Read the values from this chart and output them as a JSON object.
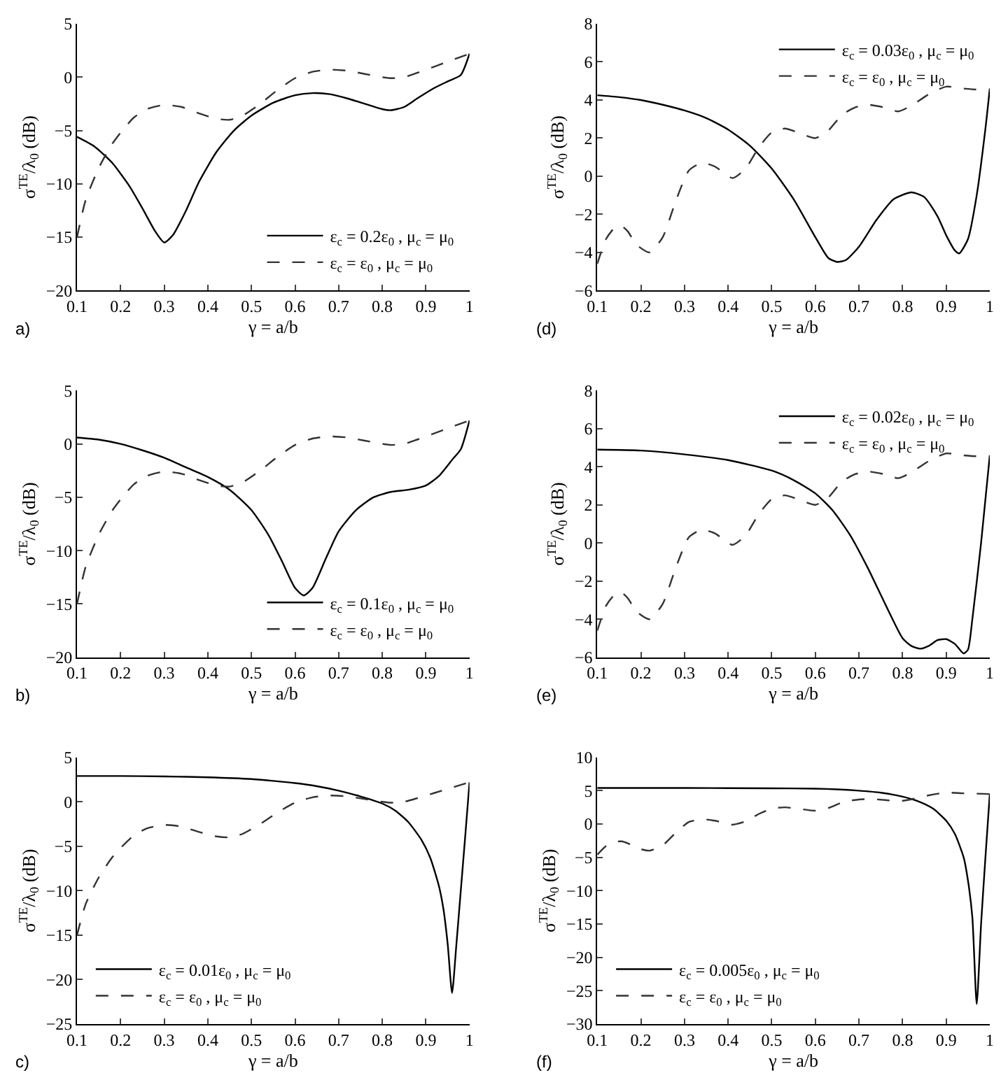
{
  "chart_data": [
    {
      "type": "line",
      "xlabel": "γ = a/b",
      "ylabel": "σ$^{TE}$/λ$_{0}$ (dB)",
      "annotations": [
        "a)"
      ],
      "xlim": [
        0.1,
        1
      ],
      "xticks": [
        0.1,
        0.2,
        0.3,
        0.4,
        0.5,
        0.6,
        0.7,
        0.8,
        0.9,
        1
      ],
      "ylim": [
        -20,
        5
      ],
      "yticks": [
        -20,
        -15,
        -10,
        -5,
        0,
        5
      ],
      "grid": false,
      "legend": "bottom right",
      "series": [
        {
          "name": "ε$_{c}$ = 0.2ε$_{0}$ , μ$_{c}$ = μ$_{0}$",
          "color": "#000000",
          "line_style": "solid",
          "x": [
            0.1,
            0.14,
            0.18,
            0.22,
            0.25,
            0.28,
            0.3,
            0.32,
            0.35,
            0.38,
            0.42,
            0.46,
            0.5,
            0.55,
            0.6,
            0.64,
            0.68,
            0.72,
            0.76,
            0.8,
            0.82,
            0.85,
            0.88,
            0.92,
            0.95,
            0.98,
            1.0
          ],
          "values": [
            -5.6,
            -6.5,
            -8,
            -10.2,
            -12.3,
            -14.5,
            -15.5,
            -14.8,
            -12.5,
            -9.8,
            -7.0,
            -5.0,
            -3.6,
            -2.4,
            -1.7,
            -1.5,
            -1.6,
            -2.0,
            -2.5,
            -3.0,
            -3.1,
            -2.8,
            -2.0,
            -1.0,
            -0.4,
            0.2,
            2.2
          ]
        },
        {
          "name": "ε$_{c}$ = ε$_{0}$ , μ$_{c}$ = μ$_{0}$",
          "color": "#333333",
          "line_style": "dashed",
          "x": [
            0.1,
            0.12,
            0.15,
            0.18,
            0.2,
            0.23,
            0.26,
            0.3,
            0.34,
            0.38,
            0.42,
            0.45,
            0.48,
            0.52,
            0.56,
            0.6,
            0.64,
            0.68,
            0.72,
            0.76,
            0.8,
            0.82,
            0.85,
            0.88,
            0.92,
            0.96,
            1.0
          ],
          "values": [
            -15,
            -11.5,
            -8.5,
            -6.3,
            -5.2,
            -3.8,
            -3.0,
            -2.6,
            -2.8,
            -3.4,
            -3.9,
            -4.0,
            -3.6,
            -2.5,
            -1.2,
            -0.1,
            0.5,
            0.7,
            0.6,
            0.3,
            0,
            -0.1,
            0,
            0.4,
            1.0,
            1.6,
            2.2
          ]
        }
      ]
    },
    {
      "type": "line",
      "xlabel": "γ = a/b",
      "ylabel": "σ$^{TE}$/λ$_{0}$ (dB)",
      "annotations": [
        "(d)"
      ],
      "xlim": [
        0.1,
        1
      ],
      "xticks": [
        0.1,
        0.2,
        0.3,
        0.4,
        0.5,
        0.6,
        0.7,
        0.8,
        0.9,
        1
      ],
      "ylim": [
        -6,
        8
      ],
      "yticks": [
        -6,
        -4,
        -2,
        0,
        2,
        4,
        6,
        8
      ],
      "grid": false,
      "legend": "top right",
      "series": [
        {
          "name": "ε$_{c}$ = 0.03ε$_{0}$ , μ$_{c}$ = μ$_{0}$",
          "color": "#000000",
          "line_style": "solid",
          "x": [
            0.1,
            0.15,
            0.2,
            0.25,
            0.3,
            0.35,
            0.4,
            0.45,
            0.5,
            0.55,
            0.6,
            0.63,
            0.65,
            0.67,
            0.7,
            0.74,
            0.78,
            0.82,
            0.85,
            0.88,
            0.9,
            0.92,
            0.93,
            0.95,
            0.97,
            0.99,
            1.0
          ],
          "values": [
            4.25,
            4.15,
            4.0,
            3.75,
            3.45,
            3.05,
            2.45,
            1.6,
            0.4,
            -1.2,
            -3.2,
            -4.3,
            -4.5,
            -4.4,
            -3.7,
            -2.3,
            -1.2,
            -0.85,
            -1.1,
            -2.1,
            -3.1,
            -3.9,
            -4.05,
            -3.3,
            -1.0,
            2.5,
            4.6
          ]
        },
        {
          "name": "ε$_{c}$ = ε$_{0}$ , μ$_{c}$ = μ$_{0}$",
          "color": "#333333",
          "line_style": "dashed",
          "x": [
            0.1,
            0.12,
            0.14,
            0.155,
            0.17,
            0.19,
            0.22,
            0.25,
            0.28,
            0.31,
            0.34,
            0.37,
            0.41,
            0.44,
            0.47,
            0.5,
            0.53,
            0.56,
            0.6,
            0.63,
            0.66,
            0.69,
            0.72,
            0.76,
            0.79,
            0.82,
            0.86,
            0.9,
            0.94,
            1.0
          ],
          "values": [
            -4.6,
            -3.3,
            -2.7,
            -2.6,
            -2.9,
            -3.6,
            -4.0,
            -3.2,
            -1.3,
            0.3,
            0.7,
            0.5,
            -0.1,
            0.4,
            1.5,
            2.3,
            2.5,
            2.3,
            2.0,
            2.4,
            3.2,
            3.6,
            3.75,
            3.6,
            3.4,
            3.7,
            4.3,
            4.7,
            4.6,
            4.5
          ]
        }
      ]
    },
    {
      "type": "line",
      "xlabel": "γ = a/b",
      "ylabel": "σ$^{TE}$/λ$_{0}$ (dB)",
      "annotations": [
        "b)"
      ],
      "xlim": [
        0.1,
        1
      ],
      "xticks": [
        0.1,
        0.2,
        0.3,
        0.4,
        0.5,
        0.6,
        0.7,
        0.8,
        0.9,
        1
      ],
      "ylim": [
        -20,
        5
      ],
      "yticks": [
        -20,
        -15,
        -10,
        -5,
        0,
        5
      ],
      "grid": false,
      "legend": "bottom right",
      "series": [
        {
          "name": "ε$_{c}$ = 0.1ε$_{0}$ , μ$_{c}$ = μ$_{0}$",
          "color": "#000000",
          "line_style": "solid",
          "x": [
            0.1,
            0.15,
            0.2,
            0.25,
            0.3,
            0.35,
            0.4,
            0.45,
            0.5,
            0.54,
            0.57,
            0.6,
            0.62,
            0.64,
            0.67,
            0.7,
            0.74,
            0.78,
            0.82,
            0.86,
            0.9,
            0.93,
            0.96,
            0.98,
            1.0
          ],
          "values": [
            0.6,
            0.4,
            0,
            -0.6,
            -1.3,
            -2.2,
            -3.1,
            -4.3,
            -6.2,
            -8.6,
            -11,
            -13.5,
            -14.2,
            -13.5,
            -10.8,
            -8.2,
            -6.2,
            -5.0,
            -4.5,
            -4.3,
            -3.9,
            -3.0,
            -1.5,
            -0.5,
            2.2
          ]
        },
        {
          "name": "ε$_{c}$ = ε$_{0}$ , μ$_{c}$ = μ$_{0}$",
          "color": "#333333",
          "line_style": "dashed",
          "x": [
            0.1,
            0.12,
            0.15,
            0.18,
            0.2,
            0.23,
            0.26,
            0.3,
            0.34,
            0.38,
            0.42,
            0.45,
            0.48,
            0.52,
            0.56,
            0.6,
            0.64,
            0.68,
            0.72,
            0.76,
            0.8,
            0.82,
            0.85,
            0.88,
            0.92,
            0.96,
            1.0
          ],
          "values": [
            -15,
            -11.5,
            -8.5,
            -6.3,
            -5.2,
            -3.8,
            -3.0,
            -2.6,
            -2.8,
            -3.4,
            -3.9,
            -4.0,
            -3.6,
            -2.5,
            -1.2,
            -0.1,
            0.5,
            0.7,
            0.6,
            0.3,
            0,
            -0.1,
            0,
            0.4,
            1.0,
            1.6,
            2.2
          ]
        }
      ]
    },
    {
      "type": "line",
      "xlabel": "γ = a/b",
      "ylabel": "σ$^{TE}$/λ$_{0}$ (dB)",
      "annotations": [
        "(e)"
      ],
      "xlim": [
        0.1,
        1
      ],
      "xticks": [
        0.1,
        0.2,
        0.3,
        0.4,
        0.5,
        0.6,
        0.7,
        0.8,
        0.9,
        1
      ],
      "ylim": [
        -6,
        8
      ],
      "yticks": [
        -6,
        -4,
        -2,
        0,
        2,
        4,
        6,
        8
      ],
      "grid": false,
      "legend": "top right",
      "series": [
        {
          "name": "ε$_{c}$ = 0.02ε$_{0}$ , μ$_{c}$ = μ$_{0}$",
          "color": "#000000",
          "line_style": "solid",
          "x": [
            0.1,
            0.2,
            0.3,
            0.4,
            0.5,
            0.55,
            0.6,
            0.64,
            0.68,
            0.72,
            0.76,
            0.8,
            0.82,
            0.84,
            0.86,
            0.88,
            0.9,
            0.92,
            0.94,
            0.95,
            0.96,
            0.98,
            1.0
          ],
          "values": [
            4.9,
            4.85,
            4.65,
            4.35,
            3.8,
            3.3,
            2.6,
            1.7,
            0.4,
            -1.3,
            -3.2,
            -5.0,
            -5.4,
            -5.55,
            -5.4,
            -5.1,
            -5.05,
            -5.3,
            -5.8,
            -5.6,
            -4.0,
            0,
            4.6
          ]
        },
        {
          "name": "ε$_{c}$ = ε$_{0}$ , μ$_{c}$ = μ$_{0}$",
          "color": "#333333",
          "line_style": "dashed",
          "x": [
            0.1,
            0.12,
            0.14,
            0.155,
            0.17,
            0.19,
            0.22,
            0.25,
            0.28,
            0.31,
            0.34,
            0.37,
            0.41,
            0.44,
            0.47,
            0.5,
            0.53,
            0.56,
            0.6,
            0.63,
            0.66,
            0.69,
            0.72,
            0.76,
            0.79,
            0.82,
            0.86,
            0.9,
            0.94,
            1.0
          ],
          "values": [
            -4.6,
            -3.3,
            -2.7,
            -2.6,
            -2.9,
            -3.6,
            -4.0,
            -3.2,
            -1.3,
            0.3,
            0.7,
            0.5,
            -0.1,
            0.4,
            1.5,
            2.3,
            2.5,
            2.3,
            2.0,
            2.4,
            3.2,
            3.6,
            3.75,
            3.6,
            3.4,
            3.7,
            4.3,
            4.7,
            4.6,
            4.5
          ]
        }
      ]
    },
    {
      "type": "line",
      "xlabel": "γ = a/b",
      "ylabel": "σ$^{TE}$/λ$_{0}$ (dB)",
      "annotations": [
        "c)"
      ],
      "xlim": [
        0.1,
        1
      ],
      "xticks": [
        0.1,
        0.2,
        0.3,
        0.4,
        0.5,
        0.6,
        0.7,
        0.8,
        0.9,
        1
      ],
      "ylim": [
        -25,
        5
      ],
      "yticks": [
        -25,
        -20,
        -15,
        -10,
        -5,
        0,
        5
      ],
      "grid": false,
      "legend": "bottom left",
      "series": [
        {
          "name": "ε$_{c}$ = 0.01ε$_{0}$ , μ$_{c}$ = μ$_{0}$",
          "color": "#000000",
          "line_style": "solid",
          "x": [
            0.1,
            0.2,
            0.3,
            0.4,
            0.5,
            0.55,
            0.6,
            0.65,
            0.7,
            0.75,
            0.8,
            0.83,
            0.86,
            0.89,
            0.91,
            0.93,
            0.94,
            0.95,
            0.96,
            0.97,
            0.98,
            0.99,
            1.0
          ],
          "values": [
            2.9,
            2.9,
            2.85,
            2.75,
            2.55,
            2.35,
            2.1,
            1.75,
            1.25,
            0.6,
            -0.2,
            -1.0,
            -2.3,
            -4.3,
            -6.3,
            -9.5,
            -12,
            -16,
            -21.5,
            -16,
            -10,
            -4,
            2.2
          ]
        },
        {
          "name": "ε$_{c}$ = ε$_{0}$ , μ$_{c}$ = μ$_{0}$",
          "color": "#333333",
          "line_style": "dashed",
          "x": [
            0.1,
            0.12,
            0.15,
            0.18,
            0.2,
            0.23,
            0.26,
            0.3,
            0.34,
            0.38,
            0.42,
            0.45,
            0.48,
            0.52,
            0.56,
            0.6,
            0.64,
            0.68,
            0.72,
            0.76,
            0.8,
            0.82,
            0.85,
            0.88,
            0.92,
            0.96,
            1.0
          ],
          "values": [
            -15,
            -11.5,
            -8.5,
            -6.3,
            -5.2,
            -3.8,
            -3.0,
            -2.6,
            -2.8,
            -3.4,
            -3.9,
            -4.0,
            -3.6,
            -2.5,
            -1.2,
            -0.1,
            0.5,
            0.7,
            0.6,
            0.3,
            0,
            -0.1,
            0,
            0.4,
            1.0,
            1.6,
            2.2
          ]
        }
      ]
    },
    {
      "type": "line",
      "xlabel": "γ = a/b",
      "ylabel": "σ$^{TE}$/λ$_{0}$ (dB)",
      "annotations": [
        "(f)"
      ],
      "xlim": [
        0.1,
        1
      ],
      "xticks": [
        0.1,
        0.2,
        0.3,
        0.4,
        0.5,
        0.6,
        0.7,
        0.8,
        0.9,
        1
      ],
      "ylim": [
        -30,
        10
      ],
      "yticks": [
        -30,
        -25,
        -20,
        -15,
        -10,
        -5,
        0,
        5,
        10
      ],
      "grid": false,
      "legend": "bottom left",
      "series": [
        {
          "name": "ε$_{c}$ = 0.005ε$_{0}$ , μ$_{c}$ = μ$_{0}$",
          "color": "#000000",
          "line_style": "solid",
          "x": [
            0.1,
            0.3,
            0.5,
            0.6,
            0.65,
            0.7,
            0.75,
            0.8,
            0.84,
            0.87,
            0.9,
            0.92,
            0.94,
            0.95,
            0.96,
            0.97,
            0.98,
            0.99,
            1.0
          ],
          "values": [
            5.4,
            5.4,
            5.35,
            5.3,
            5.2,
            5.0,
            4.7,
            4.1,
            3.3,
            2.3,
            0.5,
            -1.5,
            -5,
            -8.5,
            -14,
            -27,
            -15,
            -5,
            4.5
          ]
        },
        {
          "name": "ε$_{c}$ = ε$_{0}$ , μ$_{c}$ = μ$_{0}$",
          "color": "#333333",
          "line_style": "dashed",
          "x": [
            0.1,
            0.12,
            0.14,
            0.155,
            0.17,
            0.19,
            0.22,
            0.25,
            0.28,
            0.31,
            0.34,
            0.37,
            0.41,
            0.44,
            0.47,
            0.5,
            0.53,
            0.56,
            0.6,
            0.63,
            0.66,
            0.69,
            0.72,
            0.76,
            0.79,
            0.82,
            0.86,
            0.9,
            0.94,
            1.0
          ],
          "values": [
            -4.6,
            -3.3,
            -2.7,
            -2.6,
            -2.9,
            -3.6,
            -4.0,
            -3.2,
            -1.3,
            0.3,
            0.7,
            0.5,
            -0.1,
            0.4,
            1.5,
            2.3,
            2.5,
            2.3,
            2.0,
            2.4,
            3.2,
            3.6,
            3.75,
            3.6,
            3.4,
            3.7,
            4.3,
            4.7,
            4.6,
            4.5
          ]
        }
      ]
    }
  ]
}
